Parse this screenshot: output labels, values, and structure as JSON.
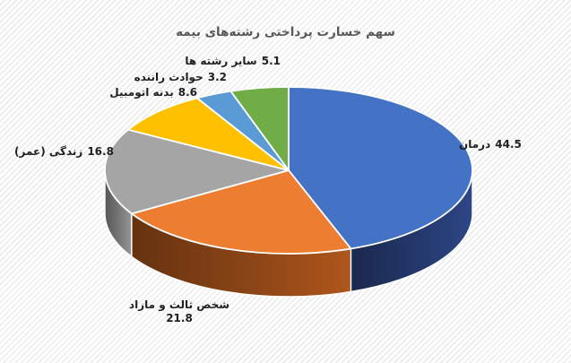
{
  "chart_data": {
    "type": "pie",
    "style": "3d-pie",
    "title": "سهم خسارت پرداختی رشته‌های بیمه",
    "unit": "percent",
    "start_angle_deg": 0,
    "direction": "clockwise",
    "title_color": "#595959",
    "label_text_color": "#1f1f1f",
    "slices": [
      {
        "label": "درمان",
        "value": 44.5,
        "color": "#4472C4",
        "side_color": "#24386B"
      },
      {
        "label": "شخص ثالث و مازاد",
        "value": 21.8,
        "color": "#ED7D31",
        "side_color": "#8C4516"
      },
      {
        "label": "زندگی (عمر)",
        "value": 16.8,
        "color": "#A5A5A5",
        "side_color": "#787878"
      },
      {
        "label": "بدنه اتومبیل",
        "value": 8.6,
        "color": "#FFC000",
        "side_color": "#A67D00"
      },
      {
        "label": "حوادث راننده",
        "value": 3.2,
        "color": "#5B9BD5",
        "side_color": "#3D6B96"
      },
      {
        "label": "سایر رشته ها",
        "value": 5.1,
        "color": "#70AD47",
        "side_color": "#4E7A31"
      }
    ]
  }
}
